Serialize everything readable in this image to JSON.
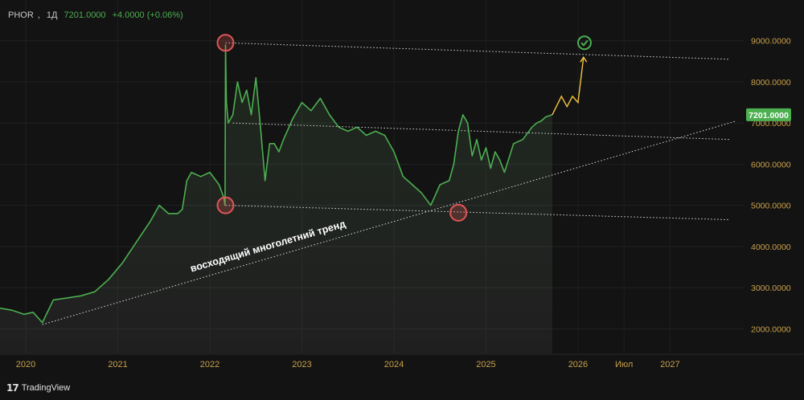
{
  "header": {
    "symbol": "PHOR",
    "timeframe": "1Д",
    "price": "7201.0000",
    "change": "+4.0000 (+0.06%)"
  },
  "brand": {
    "name": "TradingView",
    "icon": "tradingview-logo-icon"
  },
  "annotation": {
    "trend_label": "восходящий многолетний тренд"
  },
  "colors": {
    "background": "#131313",
    "price_line": "#4caf50",
    "axis_text": "#c8a04a",
    "trend_line": "#d9d9d9",
    "marker_ring": "#e05656",
    "projection": "#f5c542",
    "target_check": "#4caf50"
  },
  "chart_data": {
    "type": "line",
    "title": "",
    "xlabel": "",
    "ylabel": "",
    "x_ticks": [
      "2020",
      "2021",
      "2022",
      "2023",
      "2024",
      "2025",
      "2026",
      "Июл",
      "2027"
    ],
    "x_tick_values": [
      2020.0,
      2021.0,
      2022.0,
      2023.0,
      2024.0,
      2025.0,
      2026.0,
      2026.5,
      2027.0
    ],
    "xlim": [
      2019.72,
      2027.8
    ],
    "y_ticks": [
      "2000.0000",
      "3000.0000",
      "4000.0000",
      "5000.0000",
      "6000.0000",
      "7000.0000",
      "8000.0000",
      "9000.0000"
    ],
    "y_tick_values": [
      2000,
      3000,
      4000,
      5000,
      6000,
      7000,
      8000,
      9000
    ],
    "ylim": [
      1400,
      9600
    ],
    "current_price_label": "7201.0000",
    "current_price": 7201,
    "grid": true,
    "series": [
      {
        "x": [
          2019.72,
          2019.85,
          2019.98,
          2020.08,
          2020.18,
          2020.3,
          2020.45,
          2020.6,
          2020.75,
          2020.9,
          2021.05,
          2021.2,
          2021.35,
          2021.45,
          2021.55,
          2021.65,
          2021.7,
          2021.75,
          2021.8,
          2021.9,
          2022.0,
          2022.1,
          2022.15,
          2022.165,
          2022.17,
          2022.18,
          2022.2,
          2022.25,
          2022.3,
          2022.35,
          2022.4,
          2022.45,
          2022.5,
          2022.55,
          2022.6,
          2022.65,
          2022.7,
          2022.75,
          2022.8,
          2022.9,
          2023.0,
          2023.1,
          2023.2,
          2023.3,
          2023.4,
          2023.5,
          2023.6,
          2023.7,
          2023.8,
          2023.9,
          2024.0,
          2024.1,
          2024.2,
          2024.3,
          2024.4,
          2024.5,
          2024.6,
          2024.65,
          2024.7,
          2024.75,
          2024.8,
          2024.85,
          2024.9,
          2024.95,
          2025.0,
          2025.05,
          2025.1,
          2025.15,
          2025.2,
          2025.3,
          2025.4,
          2025.5,
          2025.55,
          2025.6,
          2025.65,
          2025.72
        ],
        "values": [
          2500,
          2450,
          2350,
          2400,
          2150,
          2700,
          2750,
          2800,
          2900,
          3200,
          3600,
          4100,
          4600,
          5000,
          4800,
          4800,
          4900,
          5600,
          5800,
          5700,
          5800,
          5500,
          5200,
          5000,
          8900,
          7500,
          7000,
          7200,
          8000,
          7500,
          7800,
          7200,
          8100,
          6900,
          5600,
          6500,
          6500,
          6300,
          6600,
          7100,
          7500,
          7300,
          7600,
          7200,
          6900,
          6800,
          6900,
          6700,
          6800,
          6700,
          6300,
          5700,
          5500,
          5300,
          5000,
          5500,
          5600,
          6000,
          6800,
          7200,
          7000,
          6200,
          6600,
          6100,
          6400,
          5900,
          6300,
          6100,
          5800,
          6500,
          6600,
          6900,
          7000,
          7050,
          7150,
          7201
        ]
      }
    ],
    "projection": {
      "x": [
        2025.72,
        2025.82,
        2025.88,
        2025.94,
        2026.0,
        2026.06
      ],
      "values": [
        7201,
        7650,
        7400,
        7650,
        7500,
        8600
      ]
    },
    "trend_lines": [
      {
        "name": "ascending",
        "x": [
          2020.18,
          2027.72
        ],
        "values": [
          2100,
          7050
        ]
      },
      {
        "name": "upper",
        "x": [
          2022.17,
          2027.65
        ],
        "values": [
          8950,
          8550
        ]
      },
      {
        "name": "middle",
        "x": [
          2022.25,
          2027.65
        ],
        "values": [
          7000,
          6600
        ]
      },
      {
        "name": "lower",
        "x": [
          2022.17,
          2027.65
        ],
        "values": [
          5000,
          4650
        ]
      }
    ],
    "markers": [
      {
        "x": 2022.17,
        "value": 8950,
        "type": "circle"
      },
      {
        "x": 2022.17,
        "value": 5000,
        "type": "circle"
      },
      {
        "x": 2024.7,
        "value": 4820,
        "type": "circle"
      },
      {
        "x": 2026.07,
        "value": 8950,
        "type": "check"
      }
    ]
  }
}
